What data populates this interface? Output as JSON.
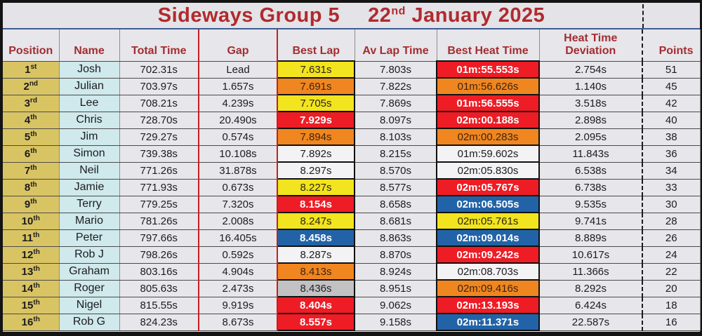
{
  "palette": {
    "title-red": "#b02a2e",
    "header-red": "#a32d31",
    "title-bg": "#e4e3e7",
    "cell-bg": "#e7e6ea",
    "bright-cell": "#f3f2f5",
    "position-bg": "#d9c464",
    "name-bg": "#cfe9ec",
    "yellow": "#f2e41e",
    "orange": "#f0861f",
    "red": "#ee1c25",
    "blue": "#2263a7",
    "grey": "#c2c2c4",
    "line-red": "#c42020",
    "line-blue": "#3c5c94"
  },
  "title": {
    "event": "Sideways Group 5",
    "date_day": "22",
    "date_ordinal": "nd",
    "date_rest": " January 2025"
  },
  "table": {
    "headers": {
      "position": "Position",
      "name": "Name",
      "total_time": "Total Time",
      "gap": "Gap",
      "best_lap": "Best Lap",
      "av_lap": "Av Lap Time",
      "best_heat": "Best Heat Time",
      "deviation": "Heat Time Deviation",
      "points": "Points"
    },
    "rows": [
      {
        "position": "1",
        "ordinal": "st",
        "name": "Josh",
        "total_time": "702.31s",
        "gap": "Lead",
        "best_lap": "7.631s",
        "best_lap_color": "yellow",
        "av_lap": "7.803s",
        "best_heat": "01m:55.553s",
        "best_heat_color": "red",
        "deviation": "2.754s",
        "points": "51"
      },
      {
        "position": "2",
        "ordinal": "nd",
        "name": "Julian",
        "total_time": "703.97s",
        "gap": "1.657s",
        "best_lap": "7.691s",
        "best_lap_color": "orange",
        "av_lap": "7.822s",
        "best_heat": "01m:56.626s",
        "best_heat_color": "orange",
        "deviation": "1.140s",
        "points": "45"
      },
      {
        "position": "3",
        "ordinal": "rd",
        "name": "Lee",
        "total_time": "708.21s",
        "gap": "4.239s",
        "best_lap": "7.705s",
        "best_lap_color": "yellow",
        "av_lap": "7.869s",
        "best_heat": "01m:56.555s",
        "best_heat_color": "red",
        "deviation": "3.518s",
        "points": "42"
      },
      {
        "position": "4",
        "ordinal": "th",
        "name": "Chris",
        "total_time": "728.70s",
        "gap": "20.490s",
        "best_lap": "7.929s",
        "best_lap_color": "red",
        "av_lap": "8.097s",
        "best_heat": "02m:00.188s",
        "best_heat_color": "red",
        "deviation": "2.898s",
        "points": "40"
      },
      {
        "position": "5",
        "ordinal": "th",
        "name": "Jim",
        "total_time": "729.27s",
        "gap": "0.574s",
        "best_lap": "7.894s",
        "best_lap_color": "orange",
        "av_lap": "8.103s",
        "best_heat": "02m:00.283s",
        "best_heat_color": "orange",
        "deviation": "2.095s",
        "points": "38"
      },
      {
        "position": "6",
        "ordinal": "th",
        "name": "Simon",
        "total_time": "739.38s",
        "gap": "10.108s",
        "best_lap": "7.892s",
        "best_lap_color": "none",
        "av_lap": "8.215s",
        "best_heat": "01m:59.602s",
        "best_heat_color": "none",
        "deviation": "11.843s",
        "points": "36"
      },
      {
        "position": "7",
        "ordinal": "th",
        "name": "Neil",
        "total_time": "771.26s",
        "gap": "31.878s",
        "best_lap": "8.297s",
        "best_lap_color": "none",
        "av_lap": "8.570s",
        "best_heat": "02m:05.830s",
        "best_heat_color": "none",
        "deviation": "6.538s",
        "points": "34"
      },
      {
        "position": "8",
        "ordinal": "th",
        "name": "Jamie",
        "total_time": "771.93s",
        "gap": "0.673s",
        "best_lap": "8.227s",
        "best_lap_color": "yellow",
        "av_lap": "8.577s",
        "best_heat": "02m:05.767s",
        "best_heat_color": "red",
        "deviation": "6.738s",
        "points": "33"
      },
      {
        "position": "9",
        "ordinal": "th",
        "name": "Terry",
        "total_time": "779.25s",
        "gap": "7.320s",
        "best_lap": "8.154s",
        "best_lap_color": "red",
        "av_lap": "8.658s",
        "best_heat": "02m:06.505s",
        "best_heat_color": "blue",
        "deviation": "9.535s",
        "points": "30"
      },
      {
        "position": "10",
        "ordinal": "th",
        "name": "Mario",
        "total_time": "781.26s",
        "gap": "2.008s",
        "best_lap": "8.247s",
        "best_lap_color": "yellow",
        "av_lap": "8.681s",
        "best_heat": "02m:05.761s",
        "best_heat_color": "yellow",
        "deviation": "9.741s",
        "points": "28"
      },
      {
        "position": "11",
        "ordinal": "th",
        "name": "Peter",
        "total_time": "797.66s",
        "gap": "16.405s",
        "best_lap": "8.458s",
        "best_lap_color": "blue",
        "av_lap": "8.863s",
        "best_heat": "02m:09.014s",
        "best_heat_color": "blue",
        "deviation": "8.889s",
        "points": "26"
      },
      {
        "position": "12",
        "ordinal": "th",
        "name": "Rob J",
        "total_time": "798.26s",
        "gap": "0.592s",
        "best_lap": "8.287s",
        "best_lap_color": "none",
        "av_lap": "8.870s",
        "best_heat": "02m:09.242s",
        "best_heat_color": "red",
        "deviation": "10.617s",
        "points": "24"
      },
      {
        "position": "13",
        "ordinal": "th",
        "name": "Graham",
        "total_time": "803.16s",
        "gap": "4.904s",
        "best_lap": "8.413s",
        "best_lap_color": "orange",
        "av_lap": "8.924s",
        "best_heat": "02m:08.703s",
        "best_heat_color": "none",
        "deviation": "11.366s",
        "points": "22"
      },
      {
        "position": "14",
        "ordinal": "th",
        "name": "Roger",
        "total_time": "805.63s",
        "gap": "2.473s",
        "best_lap": "8.436s",
        "best_lap_color": "grey",
        "av_lap": "8.951s",
        "best_heat": "02m:09.416s",
        "best_heat_color": "orange",
        "deviation": "8.292s",
        "points": "20"
      },
      {
        "position": "15",
        "ordinal": "th",
        "name": "Nigel",
        "total_time": "815.55s",
        "gap": "9.919s",
        "best_lap": "8.404s",
        "best_lap_color": "red",
        "av_lap": "9.062s",
        "best_heat": "02m:13.193s",
        "best_heat_color": "red",
        "deviation": "6.424s",
        "points": "18"
      },
      {
        "position": "16",
        "ordinal": "th",
        "name": "Rob G",
        "total_time": "824.23s",
        "gap": "8.673s",
        "best_lap": "8.557s",
        "best_lap_color": "red",
        "av_lap": "9.158s",
        "best_heat": "02m:11.371s",
        "best_heat_color": "blue",
        "deviation": "22.587s",
        "points": "16"
      }
    ]
  }
}
